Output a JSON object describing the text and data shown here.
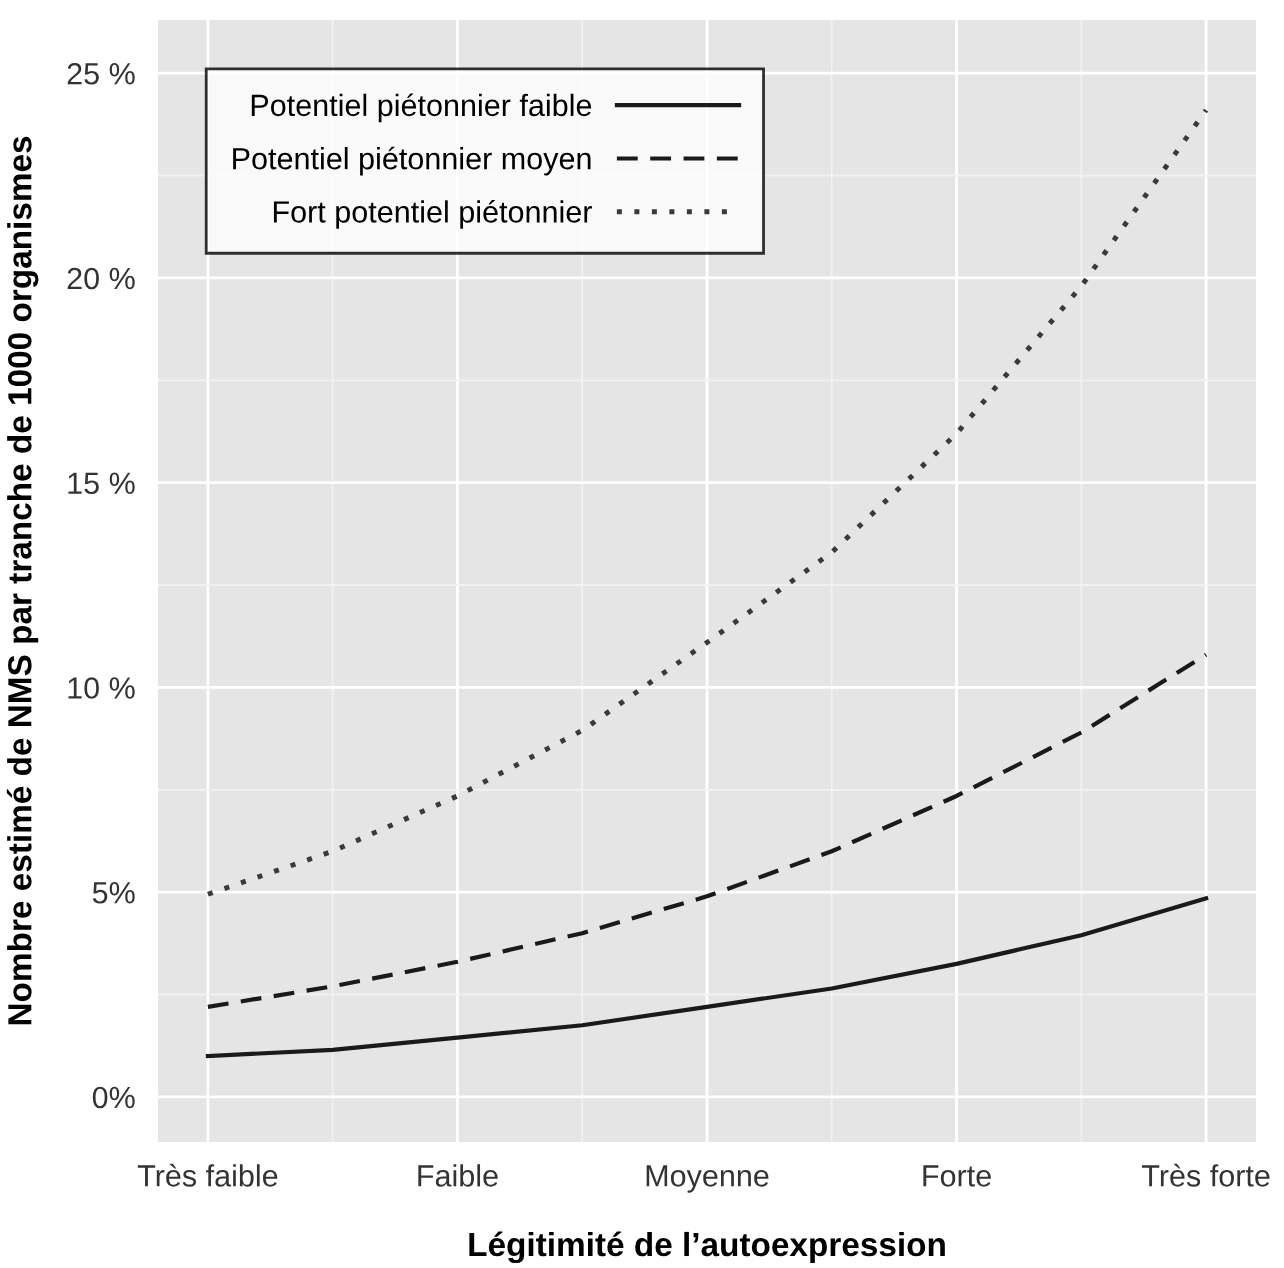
{
  "chart_data": {
    "type": "line",
    "xlabel": "Légitimité de l’autoexpression",
    "ylabel": "Nombre estimé de NMS par tranche de 1000 organismes",
    "categories": [
      "Très faible",
      null,
      "Faible",
      null,
      "Moyenne",
      null,
      "Forte",
      null,
      "Très forte"
    ],
    "series": [
      {
        "name": "Potentiel piétonnier faible",
        "color": "#1a1a1a",
        "line_style": "solid",
        "values": [
          1.0,
          1.15,
          1.45,
          1.75,
          2.2,
          2.65,
          3.25,
          3.95,
          4.85
        ]
      },
      {
        "name": "Potentiel piétonnier moyen",
        "color": "#1a1a1a",
        "line_style": "dashed",
        "values": [
          2.2,
          2.7,
          3.3,
          4.0,
          4.9,
          6.0,
          7.35,
          8.9,
          10.8
        ]
      },
      {
        "name": "Fort potentiel piétonnier",
        "color": "#3a3a3a",
        "line_style": "dotted",
        "values": [
          4.95,
          6.0,
          7.35,
          8.95,
          11.1,
          13.3,
          16.2,
          19.8,
          24.1
        ]
      }
    ],
    "ylim": [
      -1.1,
      26.3
    ],
    "yticks": [
      {
        "value": 0,
        "label": "0%"
      },
      {
        "value": 5,
        "label": "5%"
      },
      {
        "value": 10,
        "label": "10 %"
      },
      {
        "value": 15,
        "label": "15 %"
      },
      {
        "value": 20,
        "label": "20 %"
      },
      {
        "value": 25,
        "label": "25 %"
      }
    ],
    "grid": true,
    "legend": "top left",
    "marker": "none"
  }
}
